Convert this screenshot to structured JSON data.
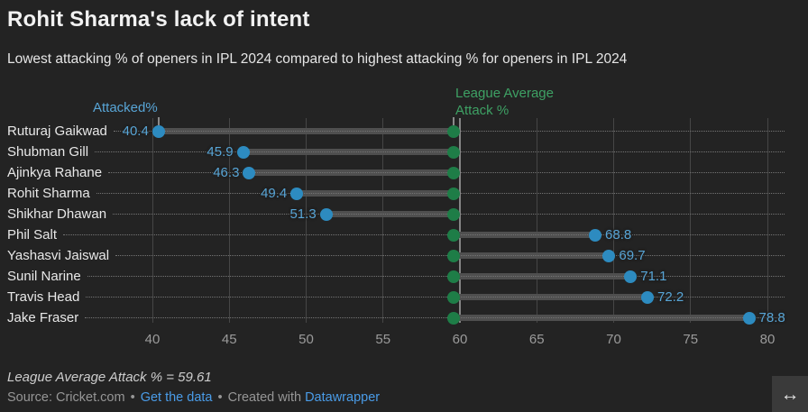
{
  "chart_data": {
    "type": "dot-range",
    "title": "Rohit Sharma's lack of intent",
    "subtitle": "Lowest attacking %  of openers in IPL 2024 compared to highest attacking % for openers in IPL 2024",
    "series_label": "Attacked%",
    "reference_label": [
      "League Average",
      "Attack %"
    ],
    "reference_value": 59.61,
    "categories": [
      "Ruturaj Gaikwad",
      "Shubman Gill",
      "Ajinkya Rahane",
      "Rohit Sharma",
      "Shikhar Dhawan",
      "Phil Salt",
      "Yashasvi Jaiswal",
      "Sunil Narine",
      "Travis Head",
      "Jake Fraser"
    ],
    "values": [
      40.4,
      45.9,
      46.3,
      49.4,
      51.3,
      68.8,
      69.7,
      71.1,
      72.2,
      78.8
    ],
    "x_ticks": [
      40,
      45,
      50,
      55,
      60,
      65,
      70,
      75,
      80
    ],
    "xlim": [
      40,
      80
    ],
    "emphasized_tick": 60,
    "grid": true,
    "annotation": "League Average Attack % = 59.61",
    "colors": {
      "value_dot": "#2d8bc0",
      "value_text": "#58a5d6",
      "reference_dot": "#1e7d47",
      "reference_text": "#3ea164",
      "range_bar": "#4f4f4f",
      "link": "#4a9ce8",
      "background": "#232323"
    }
  },
  "footer": {
    "note": "League Average Attack % = 59.61",
    "source_prefix": "Source: Cricket.com",
    "separator": "•",
    "link_get_data": "Get the data",
    "created_with": "Created with",
    "link_datawrapper": "Datawrapper",
    "resize_icon": "↔"
  }
}
